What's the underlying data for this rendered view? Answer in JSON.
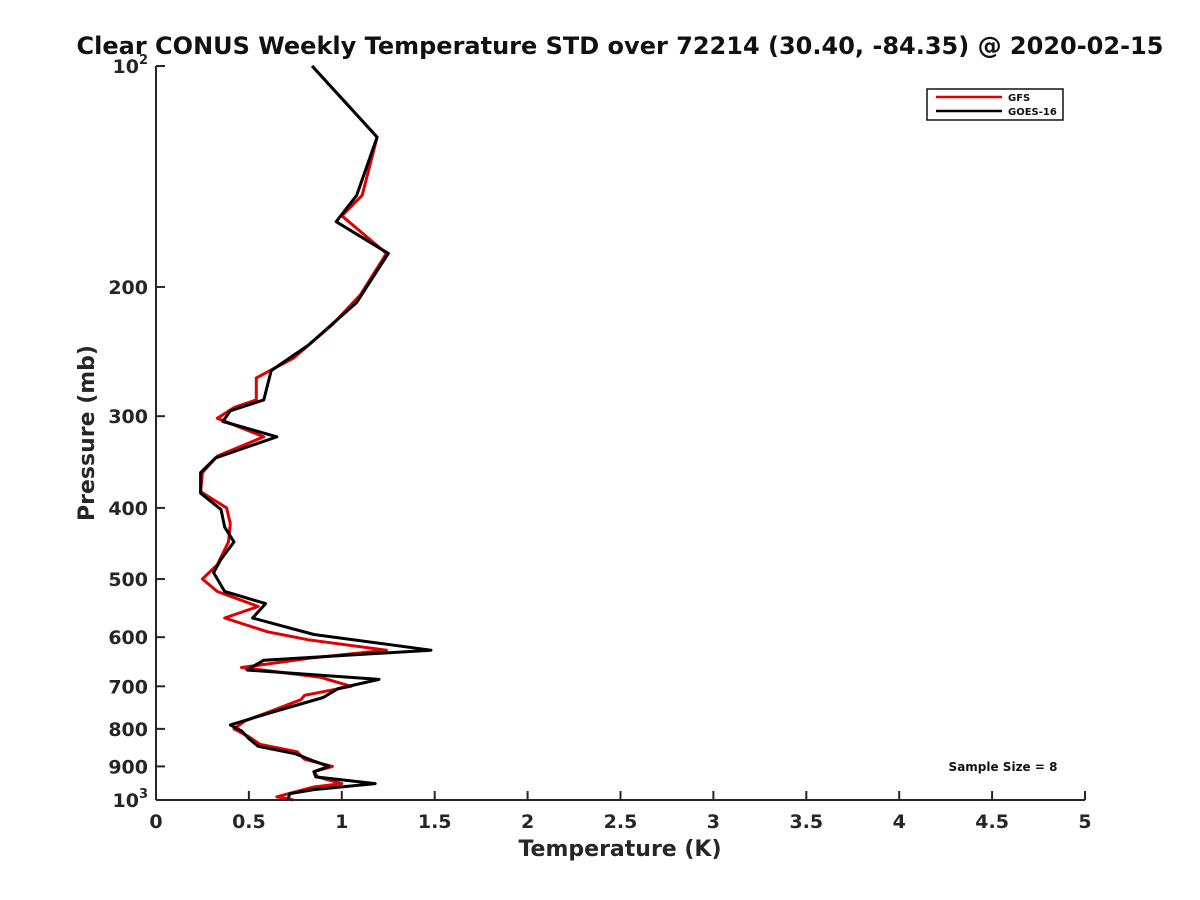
{
  "chart_data": {
    "type": "line",
    "title": "Clear CONUS Weekly Temperature STD over 72214 (30.40, -84.35) @ 2020-02-15",
    "xlabel": "Temperature (K)",
    "ylabel": "Pressure (mb)",
    "xlim": [
      0,
      5
    ],
    "ylim": [
      100,
      1000
    ],
    "yscale": "log",
    "y_reversed": true,
    "x_ticks": [
      "0",
      "0.5",
      "1",
      "1.5",
      "2",
      "2.5",
      "3",
      "3.5",
      "4",
      "4.5",
      "5"
    ],
    "y_ticks": [
      {
        "value": 100,
        "base": "10",
        "exp": "2"
      },
      {
        "value": 200,
        "label": "200"
      },
      {
        "value": 300,
        "label": "300"
      },
      {
        "value": 400,
        "label": "400"
      },
      {
        "value": 500,
        "label": "500"
      },
      {
        "value": 600,
        "label": "600"
      },
      {
        "value": 700,
        "label": "700"
      },
      {
        "value": 800,
        "label": "800"
      },
      {
        "value": 900,
        "label": "900"
      },
      {
        "value": 1000,
        "base": "10",
        "exp": "3"
      }
    ],
    "legend_position": "top-right",
    "annotation": "Sample Size = 8",
    "series": [
      {
        "name": "GFS",
        "color": "#e00000",
        "points": [
          [
            0.84,
            100
          ],
          [
            1.19,
            125
          ],
          [
            1.11,
            150
          ],
          [
            1.0,
            160
          ],
          [
            1.24,
            180
          ],
          [
            1.1,
            205
          ],
          [
            0.95,
            225
          ],
          [
            0.74,
            250
          ],
          [
            0.54,
            266
          ],
          [
            0.54,
            285
          ],
          [
            0.42,
            292
          ],
          [
            0.33,
            302
          ],
          [
            0.58,
            320
          ],
          [
            0.33,
            340
          ],
          [
            0.25,
            358
          ],
          [
            0.24,
            380
          ],
          [
            0.38,
            400
          ],
          [
            0.4,
            420
          ],
          [
            0.39,
            445
          ],
          [
            0.33,
            478
          ],
          [
            0.25,
            500
          ],
          [
            0.33,
            520
          ],
          [
            0.55,
            545
          ],
          [
            0.37,
            565
          ],
          [
            0.6,
            590
          ],
          [
            0.82,
            605
          ],
          [
            1.24,
            625
          ],
          [
            0.85,
            640
          ],
          [
            0.46,
            660
          ],
          [
            0.88,
            680
          ],
          [
            1.05,
            700
          ],
          [
            0.8,
            720
          ],
          [
            0.78,
            730
          ],
          [
            0.6,
            760
          ],
          [
            0.48,
            780
          ],
          [
            0.42,
            800
          ],
          [
            0.5,
            820
          ],
          [
            0.56,
            840
          ],
          [
            0.76,
            860
          ],
          [
            0.8,
            880
          ],
          [
            0.95,
            900
          ],
          [
            0.85,
            915
          ],
          [
            0.87,
            930
          ],
          [
            1.0,
            950
          ],
          [
            0.85,
            960
          ],
          [
            0.65,
            990
          ],
          [
            0.74,
            1000
          ]
        ]
      },
      {
        "name": "GOES-16",
        "color": "#000000",
        "points": [
          [
            0.84,
            100
          ],
          [
            1.19,
            125
          ],
          [
            1.08,
            150
          ],
          [
            0.97,
            163
          ],
          [
            1.25,
            180
          ],
          [
            1.08,
            210
          ],
          [
            0.82,
            240
          ],
          [
            0.62,
            260
          ],
          [
            0.58,
            285
          ],
          [
            0.4,
            295
          ],
          [
            0.36,
            305
          ],
          [
            0.65,
            320
          ],
          [
            0.32,
            342
          ],
          [
            0.24,
            358
          ],
          [
            0.24,
            382
          ],
          [
            0.35,
            402
          ],
          [
            0.37,
            425
          ],
          [
            0.42,
            445
          ],
          [
            0.35,
            470
          ],
          [
            0.31,
            490
          ],
          [
            0.37,
            520
          ],
          [
            0.59,
            540
          ],
          [
            0.52,
            565
          ],
          [
            0.85,
            595
          ],
          [
            1.48,
            625
          ],
          [
            0.58,
            645
          ],
          [
            0.49,
            665
          ],
          [
            1.2,
            685
          ],
          [
            0.98,
            705
          ],
          [
            0.9,
            725
          ],
          [
            0.62,
            760
          ],
          [
            0.4,
            790
          ],
          [
            0.46,
            805
          ],
          [
            0.5,
            825
          ],
          [
            0.55,
            845
          ],
          [
            0.75,
            865
          ],
          [
            0.85,
            885
          ],
          [
            0.93,
            900
          ],
          [
            0.85,
            915
          ],
          [
            0.86,
            930
          ],
          [
            1.18,
            950
          ],
          [
            0.85,
            968
          ],
          [
            0.72,
            980
          ],
          [
            0.71,
            1000
          ]
        ]
      }
    ]
  }
}
